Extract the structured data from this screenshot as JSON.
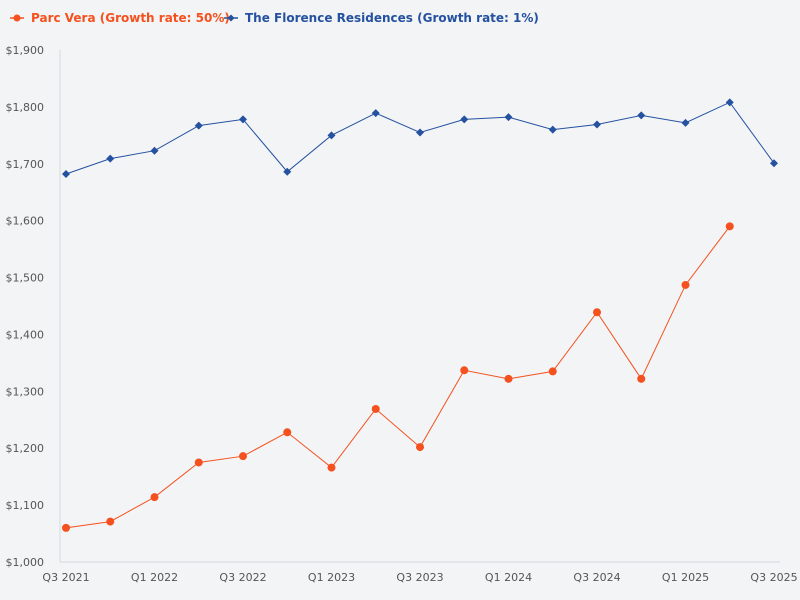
{
  "chart_data": {
    "type": "line",
    "title": "",
    "xlabel": "",
    "ylabel": "",
    "ylim": [
      1000,
      1900
    ],
    "yticks": [
      "$1,000",
      "$1,100",
      "$1,200",
      "$1,300",
      "$1,400",
      "$1,500",
      "$1,600",
      "$1,700",
      "$1,800",
      "$1,900"
    ],
    "xtick_labels": [
      "Q3 2021",
      "Q1 2022",
      "Q3 2022",
      "Q1 2023",
      "Q3 2023",
      "Q1 2024",
      "Q3 2024",
      "Q1 2025",
      "Q3 2025"
    ],
    "categories": [
      "Q3 2021",
      "Q4 2021",
      "Q1 2022",
      "Q2 2022",
      "Q3 2022",
      "Q4 2022",
      "Q1 2023",
      "Q2 2023",
      "Q3 2023",
      "Q4 2023",
      "Q1 2024",
      "Q2 2024",
      "Q3 2024",
      "Q4 2024",
      "Q1 2025",
      "Q2 2025",
      "Q3 2025"
    ],
    "legend_position": "top-left",
    "series": [
      {
        "name": "Parc Vera (Growth rate: 50%)",
        "color": "#f4511e",
        "marker": "circle",
        "values": [
          1060,
          1071,
          1114,
          1175,
          1186,
          1228,
          1166,
          1269,
          1202,
          1337,
          1322,
          1335,
          1439,
          1322,
          1487,
          1590,
          null
        ]
      },
      {
        "name": "The Florence Residences (Growth rate: 1%)",
        "color": "#2451a0",
        "marker": "diamond",
        "values": [
          1682,
          1709,
          1723,
          1767,
          1778,
          1686,
          1750,
          1789,
          1755,
          1778,
          1782,
          1760,
          1769,
          1785,
          1772,
          1808,
          1701
        ]
      }
    ]
  }
}
